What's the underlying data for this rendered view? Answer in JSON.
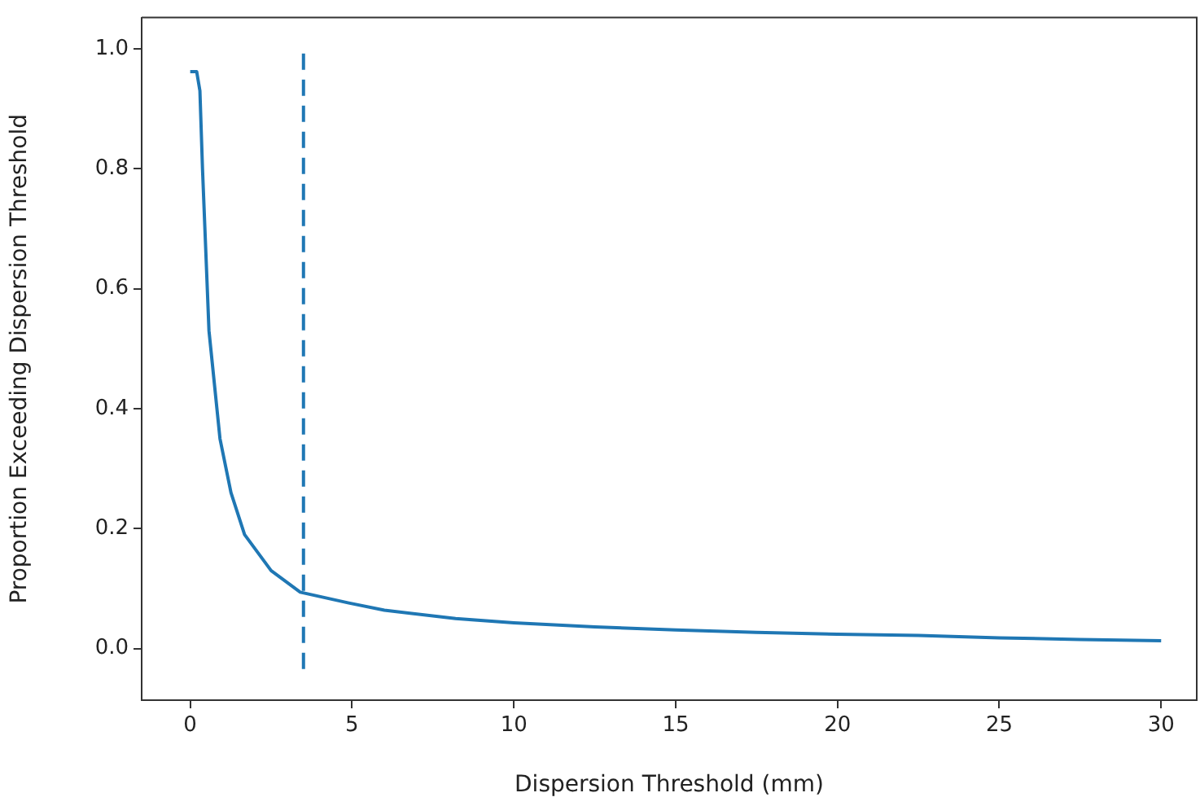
{
  "chart_data": {
    "type": "line",
    "xlabel": "Dispersion Threshold (mm)",
    "ylabel": "Proportion Exceeding Dispersion Threshold",
    "xlim": [
      -1.5,
      31.1
    ],
    "ylim": [
      -0.086,
      1.052
    ],
    "xticks": [
      0,
      5,
      10,
      15,
      20,
      25,
      30
    ],
    "yticks": [
      {
        "value": 0,
        "label": "0.0"
      },
      {
        "value": 0.2,
        "label": "0.2"
      },
      {
        "value": 0.4,
        "label": "0.4"
      },
      {
        "value": 0.6,
        "label": "0.6"
      },
      {
        "value": 0.8,
        "label": "0.8"
      },
      {
        "value": 1,
        "label": "1.0"
      }
    ],
    "grid": false,
    "legend": false,
    "marker": "none",
    "series": [
      {
        "color": "#1f77b4",
        "line_style": "solid",
        "x": [
          0,
          0.2,
          0.3,
          0.38,
          0.58,
          0.92,
          1.26,
          1.68,
          2.5,
          3.4,
          4.9,
          6,
          8.2,
          10,
          12.5,
          15,
          17.5,
          20,
          22.5,
          25,
          27.5,
          30
        ],
        "values": [
          0.962,
          0.962,
          0.93,
          0.8,
          0.53,
          0.35,
          0.26,
          0.19,
          0.13,
          0.094,
          0.076,
          0.064,
          0.05,
          0.043,
          0.036,
          0.031,
          0.027,
          0.024,
          0.022,
          0.018,
          0.015,
          0.013
        ]
      },
      {
        "color": "#1f77b4",
        "line_style": "dashed",
        "x": [
          3.5,
          3.5
        ],
        "values": [
          -0.034,
          1.0
        ]
      }
    ]
  }
}
